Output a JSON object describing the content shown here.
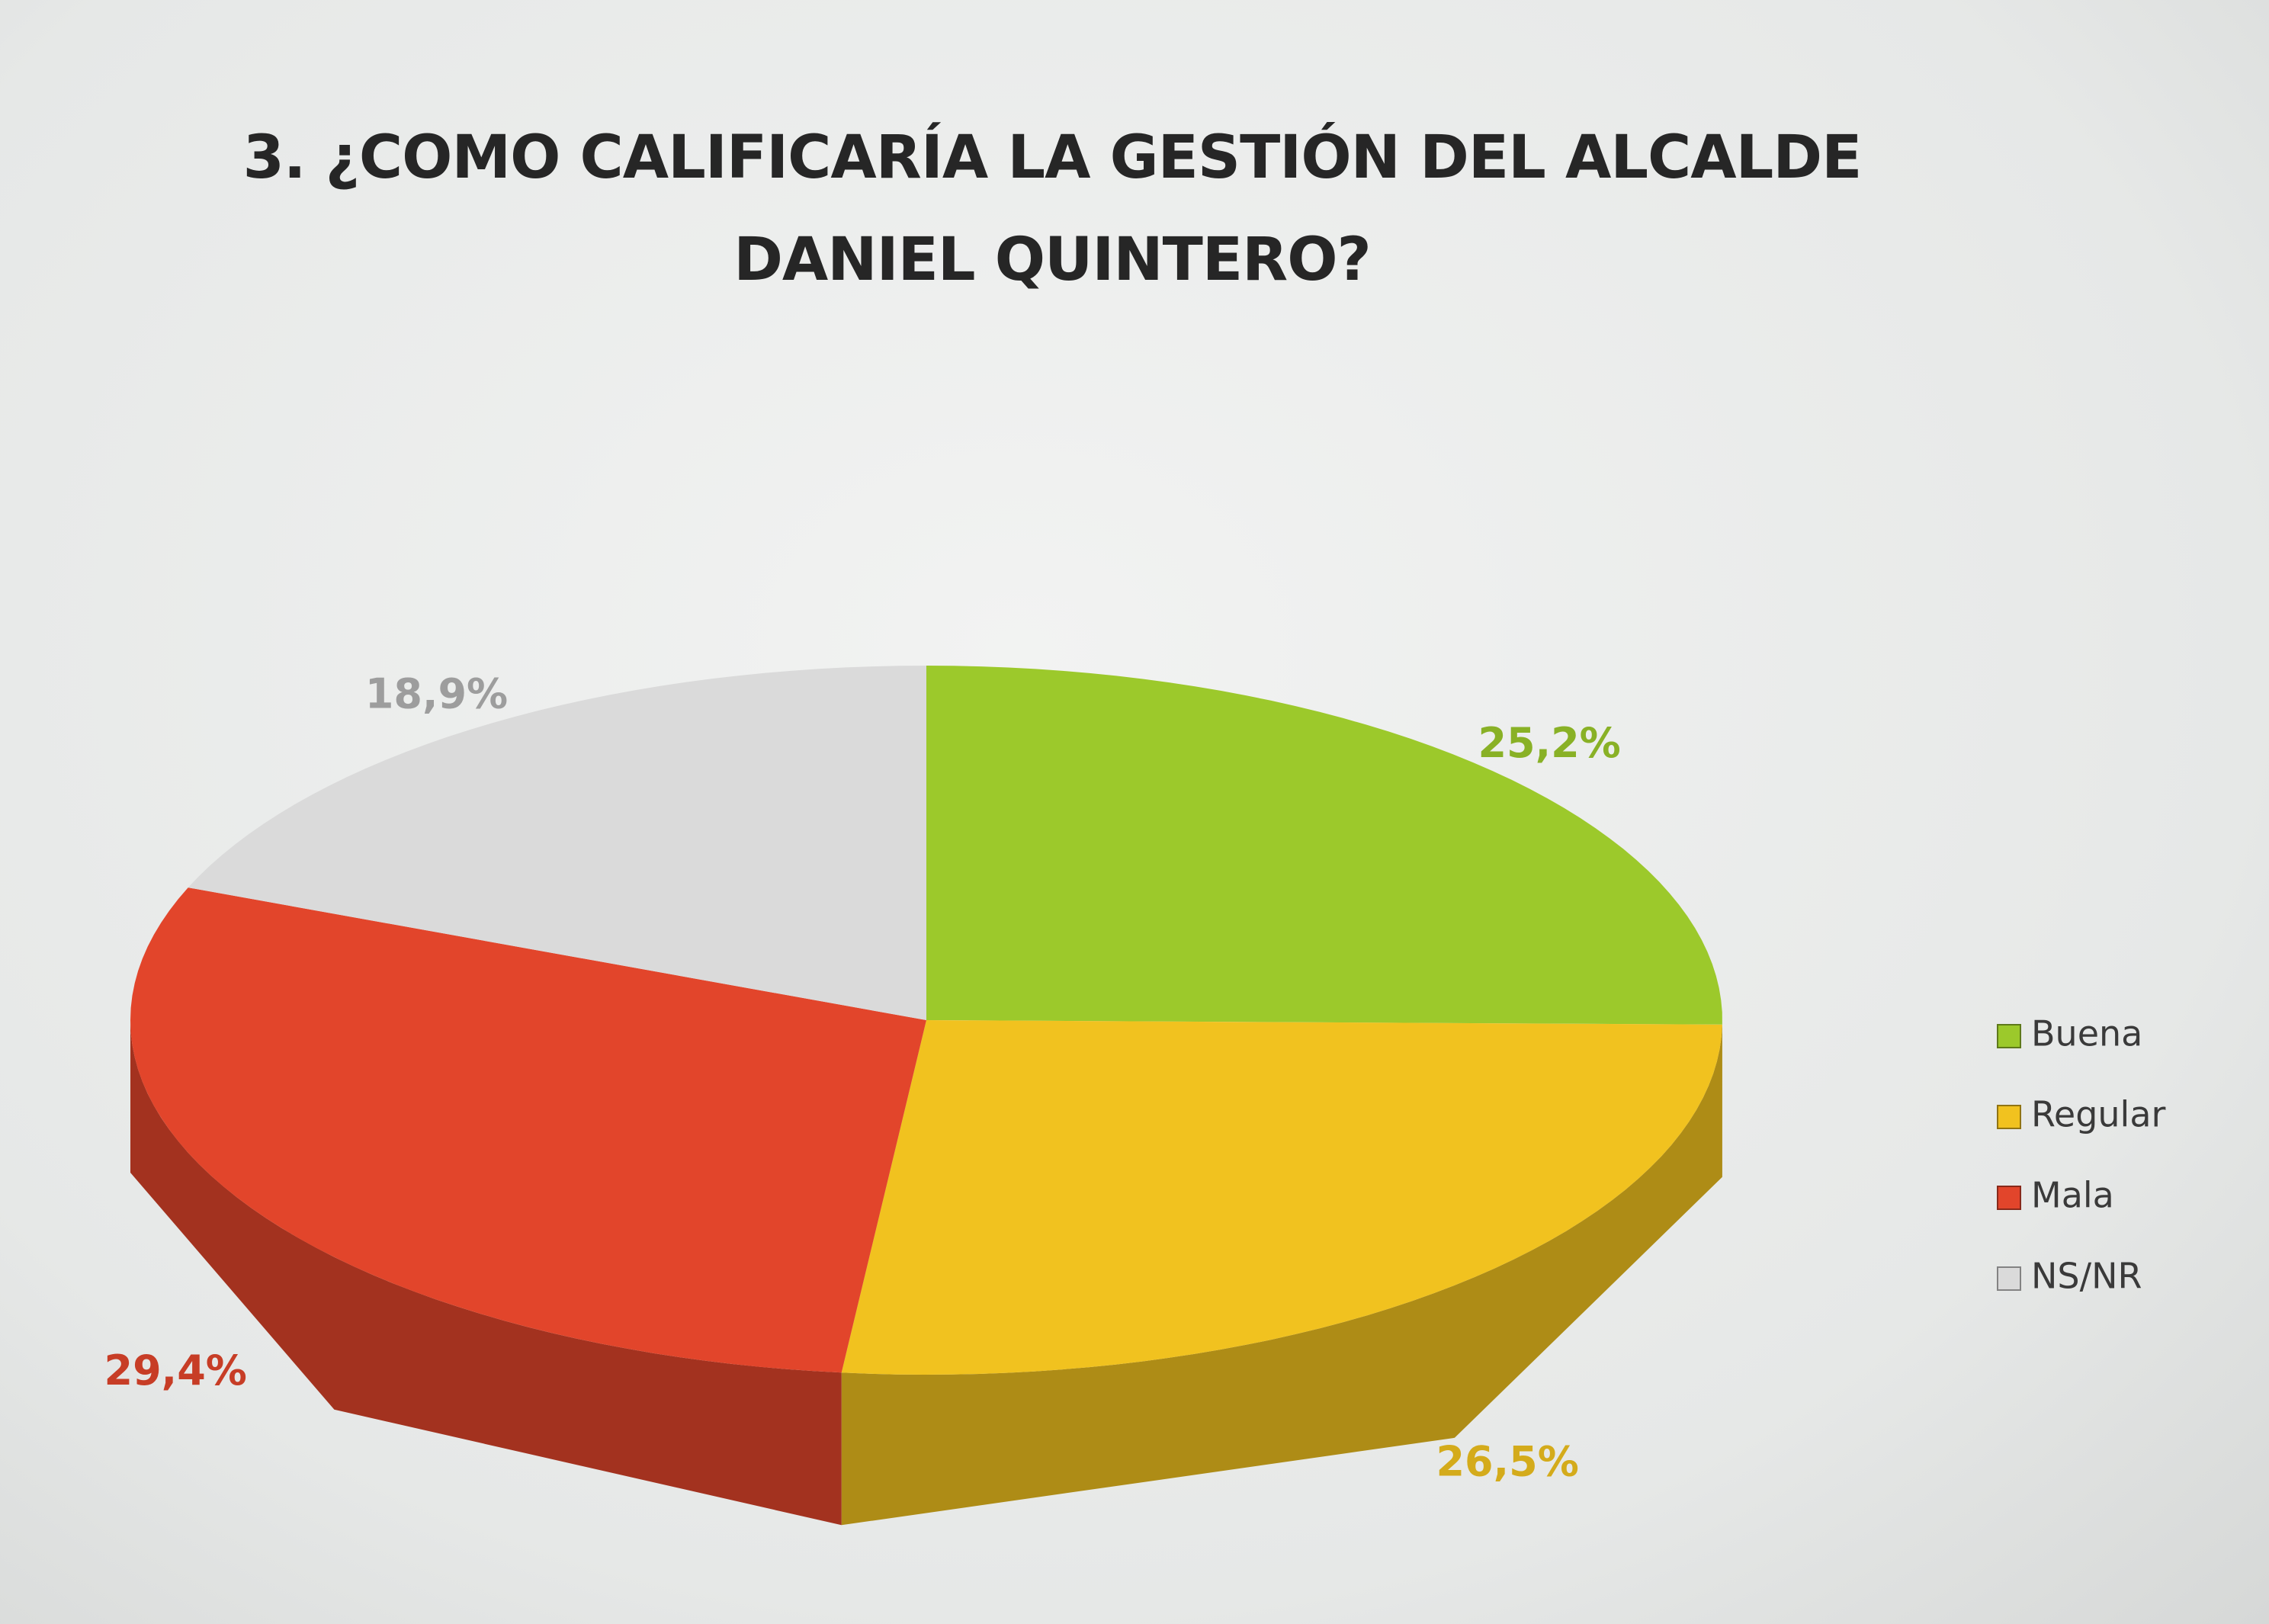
{
  "chart_data": {
    "type": "pie",
    "title": "3. ¿COMO CALIFICARÍA LA GESTIÓN DEL ALCALDE DANIEL QUINTERO?",
    "categories": [
      "Buena",
      "Regular",
      "Mala",
      "NS/NR"
    ],
    "values": [
      25.2,
      26.5,
      29.4,
      18.9
    ],
    "value_labels": [
      "25,2%",
      "26,5%",
      "29,4%",
      "18,9%"
    ],
    "colors": [
      "#9cc92b",
      "#f1c21f",
      "#e2452b",
      "#dadada"
    ],
    "legend": "right"
  }
}
